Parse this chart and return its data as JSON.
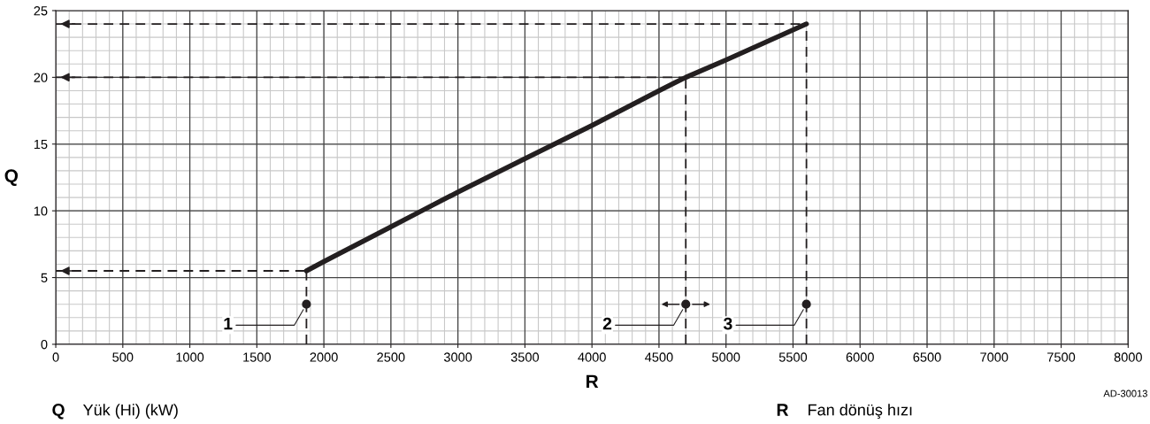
{
  "chart_data": {
    "type": "line",
    "xlabel": "R",
    "ylabel": "Q",
    "xlim": [
      0,
      8000
    ],
    "xticks": [
      0,
      500,
      1000,
      1500,
      2000,
      2500,
      3000,
      3500,
      4000,
      4500,
      5000,
      5500,
      6000,
      6500,
      7000,
      7500,
      8000
    ],
    "ylim": [
      0,
      25
    ],
    "yticks": [
      0,
      5,
      10,
      15,
      20,
      25
    ],
    "grid": true,
    "marker": "none",
    "line_style": "solid",
    "series": [
      {
        "color": "#231f20",
        "x": [
          1870,
          2000,
          2500,
          2730,
          3000,
          3500,
          3720,
          4000,
          4500,
          4700,
          5000,
          5600
        ],
        "values": [
          5.5,
          6.2,
          8.8,
          10,
          11.4,
          13.9,
          15,
          16.4,
          19.0,
          20,
          21.3,
          24
        ]
      },
      {
        "color": "#231f20",
        "line_style": "dashed",
        "x": [
          0,
          1870
        ],
        "values": [
          5.5,
          5.5
        ]
      },
      {
        "color": "#231f20",
        "line_style": "dashed",
        "x": [
          0,
          4700
        ],
        "values": [
          20,
          20
        ]
      },
      {
        "color": "#231f20",
        "line_style": "dashed",
        "x": [
          0,
          5600
        ],
        "values": [
          24,
          24
        ]
      },
      {
        "color": "#231f20",
        "line_style": "dashed",
        "x": [
          1870,
          1870
        ],
        "values": [
          0,
          5.5
        ]
      },
      {
        "color": "#231f20",
        "line_style": "dashed",
        "x": [
          4700,
          4700
        ],
        "values": [
          0,
          20
        ]
      },
      {
        "color": "#231f20",
        "line_style": "dashed",
        "x": [
          5600,
          5600
        ],
        "values": [
          0,
          24
        ]
      },
      {
        "type": "scatter",
        "marker": "circle",
        "color": "#231f20",
        "x": [
          1870,
          4700,
          5600
        ],
        "values": [
          3,
          3,
          3
        ]
      }
    ],
    "annotations": [
      {
        "text": "1",
        "x": 1870,
        "y": 3
      },
      {
        "text": "2",
        "x": 4700,
        "y": 3
      },
      {
        "text": "3",
        "x": 5600,
        "y": 3
      },
      "AD-30013",
      "Q",
      "Yük (Hi) (kW)",
      "R",
      "Fan dönüş hızı"
    ]
  }
}
